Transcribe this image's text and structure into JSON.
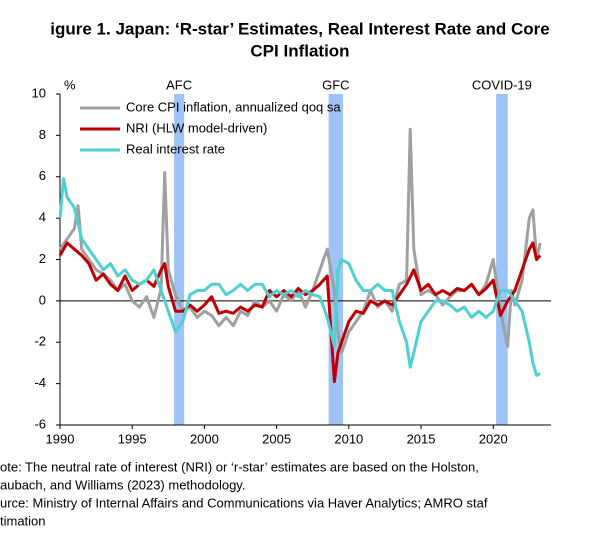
{
  "chart_data": {
    "type": "line",
    "title_lines": [
      "igure 1. Japan: ‘R-star’ Estimates, Real Interest Rate and Core",
      "CPI Inflation"
    ],
    "y_unit": "%",
    "notes": [
      "ote: The neutral rate of interest (NRI) or ‘r-star’ estimates are based on the Holston,",
      "aubach, and Williams (2023) methodology.",
      "urce: Ministry of Internal Affairs and Communications via Haver Analytics; AMRO staf",
      "timation"
    ],
    "xlim": [
      1990,
      2024
    ],
    "xticks": [
      1990,
      1995,
      2000,
      2005,
      2010,
      2015,
      2020
    ],
    "ylim": [
      -6,
      10
    ],
    "yticks": [
      -6,
      -4,
      -2,
      0,
      2,
      4,
      6,
      8,
      10
    ],
    "shaded_periods": [
      {
        "label": "AFC",
        "start": 1997.9,
        "end": 1998.6,
        "color": "#9dc3f7"
      },
      {
        "label": "GFC",
        "start": 2008.6,
        "end": 2009.6,
        "color": "#9dc3f7"
      },
      {
        "label": "COVID-19",
        "start": 2020.2,
        "end": 2021.0,
        "color": "#9dc3f7"
      }
    ],
    "legend": "top-left",
    "series": [
      {
        "name": "Core CPI inflation, annualized qoq sa",
        "color": "#a0a0a0",
        "x": [
          1990,
          1990.5,
          1991,
          1991.25,
          1991.5,
          1992,
          1992.5,
          1993,
          1993.5,
          1994,
          1994.5,
          1995,
          1995.5,
          1996,
          1996.5,
          1997,
          1997.25,
          1997.5,
          1998,
          1998.5,
          1999,
          1999.5,
          2000,
          2000.5,
          2001,
          2001.5,
          2002,
          2002.5,
          2003,
          2003.5,
          2004,
          2004.5,
          2005,
          2005.5,
          2006,
          2006.5,
          2007,
          2007.5,
          2008,
          2008.5,
          2009,
          2009.25,
          2009.5,
          2010,
          2010.5,
          2011,
          2011.5,
          2012,
          2012.5,
          2013,
          2013.5,
          2014,
          2014.25,
          2014.5,
          2015,
          2015.5,
          2016,
          2016.5,
          2017,
          2017.5,
          2018,
          2018.5,
          2019,
          2019.5,
          2020,
          2020.5,
          2021,
          2021.25,
          2021.5,
          2022,
          2022.25,
          2022.5,
          2022.75,
          2023,
          2023.25
        ],
        "values": [
          2.5,
          3.0,
          3.5,
          4.6,
          2.5,
          2.0,
          1.5,
          1.3,
          1.0,
          0.5,
          0.8,
          0,
          -0.3,
          0.2,
          -0.8,
          0.6,
          6.2,
          1.5,
          0.3,
          -0.5,
          -0.3,
          -0.8,
          -0.5,
          -0.7,
          -1.2,
          -0.8,
          -1.2,
          -0.5,
          -0.7,
          0,
          -0.3,
          0,
          -0.5,
          0.3,
          0,
          0.5,
          -0.3,
          0.5,
          1.5,
          2.5,
          0.5,
          -1.5,
          -2.5,
          -1.5,
          -1.0,
          -0.5,
          0.5,
          -0.3,
          0,
          -0.5,
          0.8,
          1.0,
          8.3,
          2.5,
          0.3,
          0.5,
          0.3,
          -0.2,
          0.2,
          0.5,
          0.5,
          0.8,
          0.3,
          0.8,
          2.0,
          -0.5,
          -2.2,
          0.5,
          -0.2,
          1.0,
          2.5,
          4.0,
          4.4,
          2.0,
          2.8
        ]
      },
      {
        "name": "NRI (HLW model-driven)",
        "color": "#c00000",
        "x": [
          1990,
          1990.5,
          1991,
          1991.5,
          1992,
          1992.5,
          1993,
          1993.5,
          1994,
          1994.5,
          1995,
          1995.5,
          1996,
          1996.5,
          1997,
          1997.25,
          1997.5,
          1998,
          1998.5,
          1999,
          1999.5,
          2000,
          2000.5,
          2001,
          2001.5,
          2002,
          2002.5,
          2003,
          2003.5,
          2004,
          2004.5,
          2005,
          2005.5,
          2006,
          2006.5,
          2007,
          2007.5,
          2008,
          2008.5,
          2009,
          2009.25,
          2009.5,
          2010,
          2010.5,
          2011,
          2011.5,
          2012,
          2012.5,
          2013,
          2013.5,
          2014,
          2014.5,
          2015,
          2015.5,
          2016,
          2016.5,
          2017,
          2017.5,
          2018,
          2018.5,
          2019,
          2019.5,
          2020,
          2020.5,
          2021,
          2021.5,
          2022,
          2022.5,
          2022.75,
          2023,
          2023.25
        ],
        "values": [
          2.2,
          2.8,
          2.5,
          2.2,
          1.8,
          1.0,
          1.3,
          0.8,
          0.5,
          1.2,
          0.5,
          0.8,
          1.0,
          0.7,
          1.5,
          1.8,
          0.7,
          -0.5,
          -0.5,
          -0.2,
          -0.5,
          -0.2,
          0.2,
          -0.6,
          -0.5,
          -0.6,
          -0.3,
          -0.5,
          -0.2,
          -0.3,
          0.5,
          0.2,
          0.5,
          0.2,
          0.6,
          0.3,
          0.5,
          0.8,
          1.2,
          -3.9,
          -2.5,
          -2.0,
          -1.0,
          -0.5,
          -0.6,
          0,
          -0.2,
          0,
          -0.2,
          0.3,
          0.8,
          1.5,
          0.5,
          0.8,
          0.3,
          0.5,
          0.3,
          0.6,
          0.5,
          0.8,
          0.3,
          0.6,
          1.0,
          -0.7,
          0,
          0.5,
          1.5,
          2.5,
          2.8,
          2.0,
          2.2
        ]
      },
      {
        "name": "Real interest rate",
        "color": "#4fd1d1",
        "x": [
          1990,
          1990.25,
          1990.5,
          1991,
          1991.5,
          1992,
          1992.5,
          1993,
          1993.5,
          1994,
          1994.5,
          1995,
          1995.5,
          1996,
          1996.5,
          1997,
          1997.5,
          1998,
          1998.5,
          1999,
          1999.5,
          2000,
          2000.5,
          2001,
          2001.5,
          2002,
          2002.5,
          2003,
          2003.5,
          2004,
          2004.5,
          2005,
          2005.5,
          2006,
          2006.5,
          2007,
          2007.5,
          2008,
          2008.5,
          2009,
          2009.25,
          2009.5,
          2010,
          2010.5,
          2011,
          2011.5,
          2012,
          2012.5,
          2013,
          2013.5,
          2014,
          2014.25,
          2014.5,
          2015,
          2015.5,
          2016,
          2016.5,
          2017,
          2017.5,
          2018,
          2018.5,
          2019,
          2019.5,
          2020,
          2020.5,
          2021,
          2021.5,
          2022,
          2022.5,
          2022.75,
          2023,
          2023.25
        ],
        "values": [
          4.0,
          5.9,
          5.0,
          4.5,
          3.0,
          2.5,
          2.0,
          1.5,
          1.8,
          1.2,
          1.5,
          1.0,
          0.8,
          1.0,
          1.5,
          0.5,
          -0.5,
          -1.5,
          -1.0,
          0.3,
          0.5,
          0.5,
          0.8,
          0.8,
          0.3,
          0.5,
          0.8,
          0.5,
          0.8,
          0.8,
          0.2,
          0.5,
          0.3,
          0.5,
          0.2,
          0.5,
          0.3,
          0.2,
          -0.8,
          -2.2,
          1.5,
          2.0,
          1.8,
          1.0,
          0.5,
          0.5,
          0.8,
          0.5,
          0.5,
          -1.0,
          -2.0,
          -3.2,
          -2.5,
          -1.0,
          -0.5,
          0,
          0,
          -0.2,
          -0.5,
          -0.3,
          -0.8,
          -0.5,
          -0.8,
          -0.5,
          0.5,
          0.5,
          0,
          -0.5,
          -2.0,
          -3.0,
          -3.6,
          -3.5
        ]
      }
    ]
  }
}
